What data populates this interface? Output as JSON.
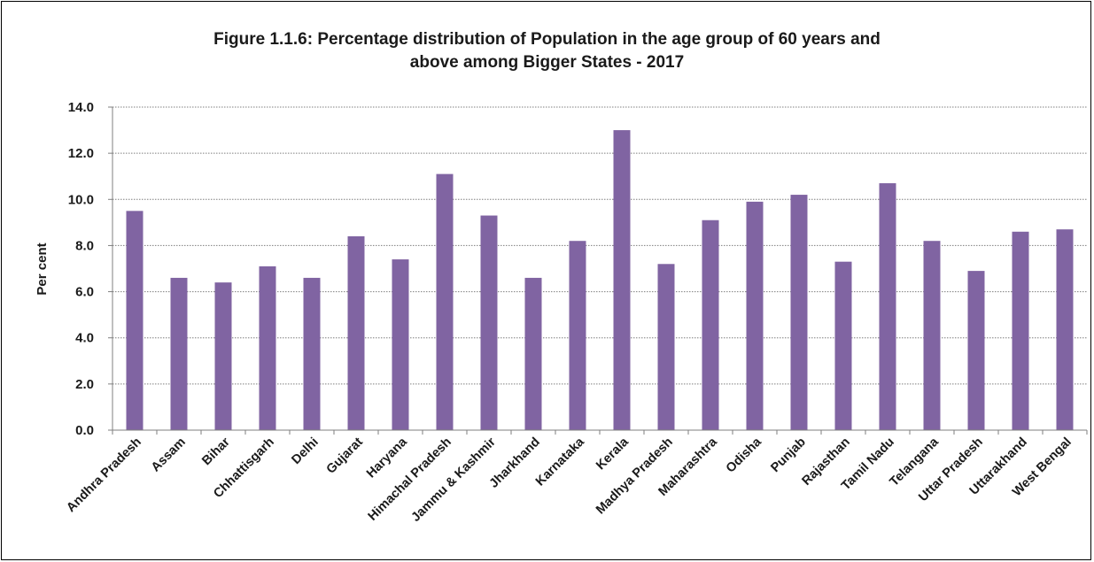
{
  "chart_data": {
    "type": "bar",
    "title_line1": "Figure 1.1.6: Percentage distribution of Population in the age group of 60 years and",
    "title_line2": "above among Bigger States - 2017",
    "xlabel": "",
    "ylabel": "Per cent",
    "ylim": [
      0,
      14
    ],
    "yticks": [
      "0.0",
      "2.0",
      "4.0",
      "6.0",
      "8.0",
      "10.0",
      "12.0",
      "14.0"
    ],
    "grid": true,
    "legend": "none",
    "bar_color": "#8064a2",
    "categories": [
      "Andhra Pradesh",
      "Assam",
      "Bihar",
      "Chhattisgarh",
      "Delhi",
      "Gujarat",
      "Haryana",
      "Himachal Pradesh",
      "Jammu & Kashmir",
      "Jharkhand",
      "Karnataka",
      "Kerala",
      "Madhya Pradesh",
      "Maharashtra",
      "Odisha",
      "Punjab",
      "Rajasthan",
      "Tamil Nadu",
      "Telangana",
      "Uttar Pradesh",
      "Uttarakhand",
      "West Bengal"
    ],
    "values": [
      9.5,
      6.6,
      6.4,
      7.1,
      6.6,
      8.4,
      7.4,
      11.1,
      9.3,
      6.6,
      8.2,
      13.0,
      7.2,
      9.1,
      9.9,
      10.2,
      7.3,
      10.7,
      8.2,
      6.9,
      8.6,
      8.7
    ]
  }
}
